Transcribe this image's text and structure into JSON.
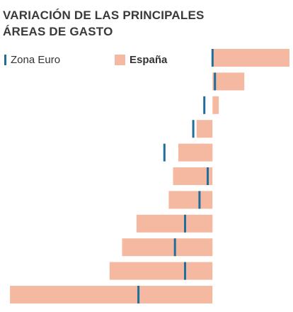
{
  "title_lines": [
    "VARIACIÓN DE LAS PRINCIPALES",
    "ÁREAS DE GASTO"
  ],
  "legend": {
    "euro_label": "Zona Euro",
    "spain_label": "España"
  },
  "colors": {
    "euro": "#1f6e9c",
    "spain": "#f4b9a0",
    "title": "#3a3a3a"
  },
  "chart_data": {
    "type": "bar",
    "orientation": "horizontal",
    "title": "VARIACIÓN DE LAS PRINCIPALES ÁREAS DE GASTO",
    "categories": [
      "",
      "",
      "",
      "",
      "",
      "",
      "",
      "",
      "",
      "",
      ""
    ],
    "series": [
      {
        "name": "España",
        "values": [
          1.6,
          0.66,
          0.13,
          -0.33,
          -0.71,
          -0.82,
          -0.91,
          -1.58,
          -1.88,
          -2.14,
          -4.21
        ]
      },
      {
        "name": "Zona Euro",
        "values": [
          0.0,
          0.05,
          -0.17,
          -0.4,
          -1.0,
          -0.1,
          -0.27,
          -0.57,
          -0.78,
          -0.57,
          -1.54
        ]
      }
    ],
    "xlim": [
      -4.3,
      1.6
    ],
    "grid": false,
    "legend_position": "top-left"
  }
}
